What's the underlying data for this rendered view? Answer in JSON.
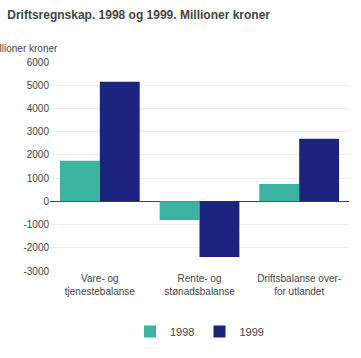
{
  "chart_data": {
    "type": "bar",
    "title": "Driftsregnskap. 1998 og 1999. Millioner kroner",
    "ylabel": "Millioner kroner",
    "categories": [
      "Vare- og\ntjenestebalanse",
      "Rente- og\nstønadsbalanse",
      "Driftsbalanse over-\nfor utlandet"
    ],
    "series": [
      {
        "name": "1998",
        "color": "#3cb3a0",
        "values": [
          1750,
          -800,
          750
        ]
      },
      {
        "name": "1999",
        "color": "#1a237e",
        "values": [
          5150,
          -2400,
          2700
        ]
      }
    ],
    "ylim": [
      -3000,
      6000
    ],
    "yticks": [
      -3000,
      -2000,
      -1000,
      0,
      1000,
      2000,
      3000,
      4000,
      5000,
      6000
    ],
    "grid": true,
    "legend": "bottom"
  }
}
